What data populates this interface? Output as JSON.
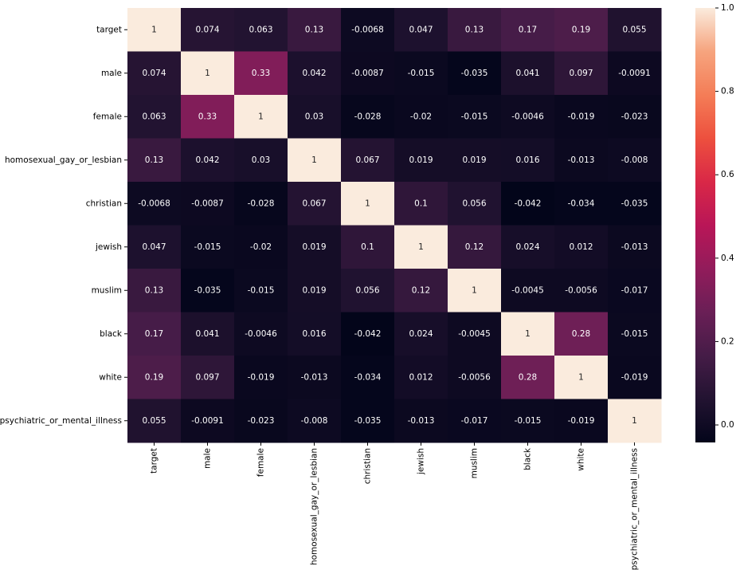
{
  "chart_data": {
    "type": "heatmap",
    "x_categories": [
      "target",
      "male",
      "female",
      "homosexual_gay_or_lesbian",
      "christian",
      "jewish",
      "muslim",
      "black",
      "white",
      "psychiatric_or_mental_illness"
    ],
    "y_categories": [
      "target",
      "male",
      "female",
      "homosexual_gay_or_lesbian",
      "christian",
      "jewish",
      "muslim",
      "black",
      "white",
      "psychiatric_or_mental_illness"
    ],
    "values": [
      [
        1,
        0.074,
        0.063,
        0.13,
        -0.0068,
        0.047,
        0.13,
        0.17,
        0.19,
        0.055
      ],
      [
        0.074,
        1,
        0.33,
        0.042,
        -0.0087,
        -0.015,
        -0.035,
        0.041,
        0.097,
        -0.0091
      ],
      [
        0.063,
        0.33,
        1,
        0.03,
        -0.028,
        -0.02,
        -0.015,
        -0.0046,
        -0.019,
        -0.023
      ],
      [
        0.13,
        0.042,
        0.03,
        1,
        0.067,
        0.019,
        0.019,
        0.016,
        -0.013,
        -0.008
      ],
      [
        -0.0068,
        -0.0087,
        -0.028,
        0.067,
        1,
        0.1,
        0.056,
        -0.042,
        -0.034,
        -0.035
      ],
      [
        0.047,
        -0.015,
        -0.02,
        0.019,
        0.1,
        1,
        0.12,
        0.024,
        0.012,
        -0.013
      ],
      [
        0.13,
        -0.035,
        -0.015,
        0.019,
        0.056,
        0.12,
        1,
        -0.0045,
        -0.0056,
        -0.017
      ],
      [
        0.17,
        0.041,
        -0.0046,
        0.016,
        -0.042,
        0.024,
        -0.0045,
        1,
        0.28,
        -0.015
      ],
      [
        0.19,
        0.097,
        -0.019,
        -0.013,
        -0.034,
        0.012,
        -0.0056,
        0.28,
        1,
        -0.019
      ],
      [
        0.055,
        -0.0091,
        -0.023,
        -0.008,
        -0.035,
        -0.013,
        -0.017,
        -0.015,
        -0.019,
        1
      ]
    ],
    "vlim": [
      -0.042,
      1
    ],
    "colorbar_ticks": [
      {
        "value": 0,
        "label": "0.0"
      },
      {
        "value": 0.2,
        "label": "0.2"
      },
      {
        "value": 0.4,
        "label": "0.4"
      },
      {
        "value": 0.6,
        "label": "0.6"
      },
      {
        "value": 0.8,
        "label": "0.8"
      },
      {
        "value": 1,
        "label": "1.0"
      }
    ],
    "colormap": [
      "#03051a",
      "#221331",
      "#451c47",
      "#6a1f56",
      "#921c5b",
      "#b91657",
      "#d92847",
      "#ed503e",
      "#f47d57",
      "#f6a47e",
      "#faebdd"
    ]
  }
}
